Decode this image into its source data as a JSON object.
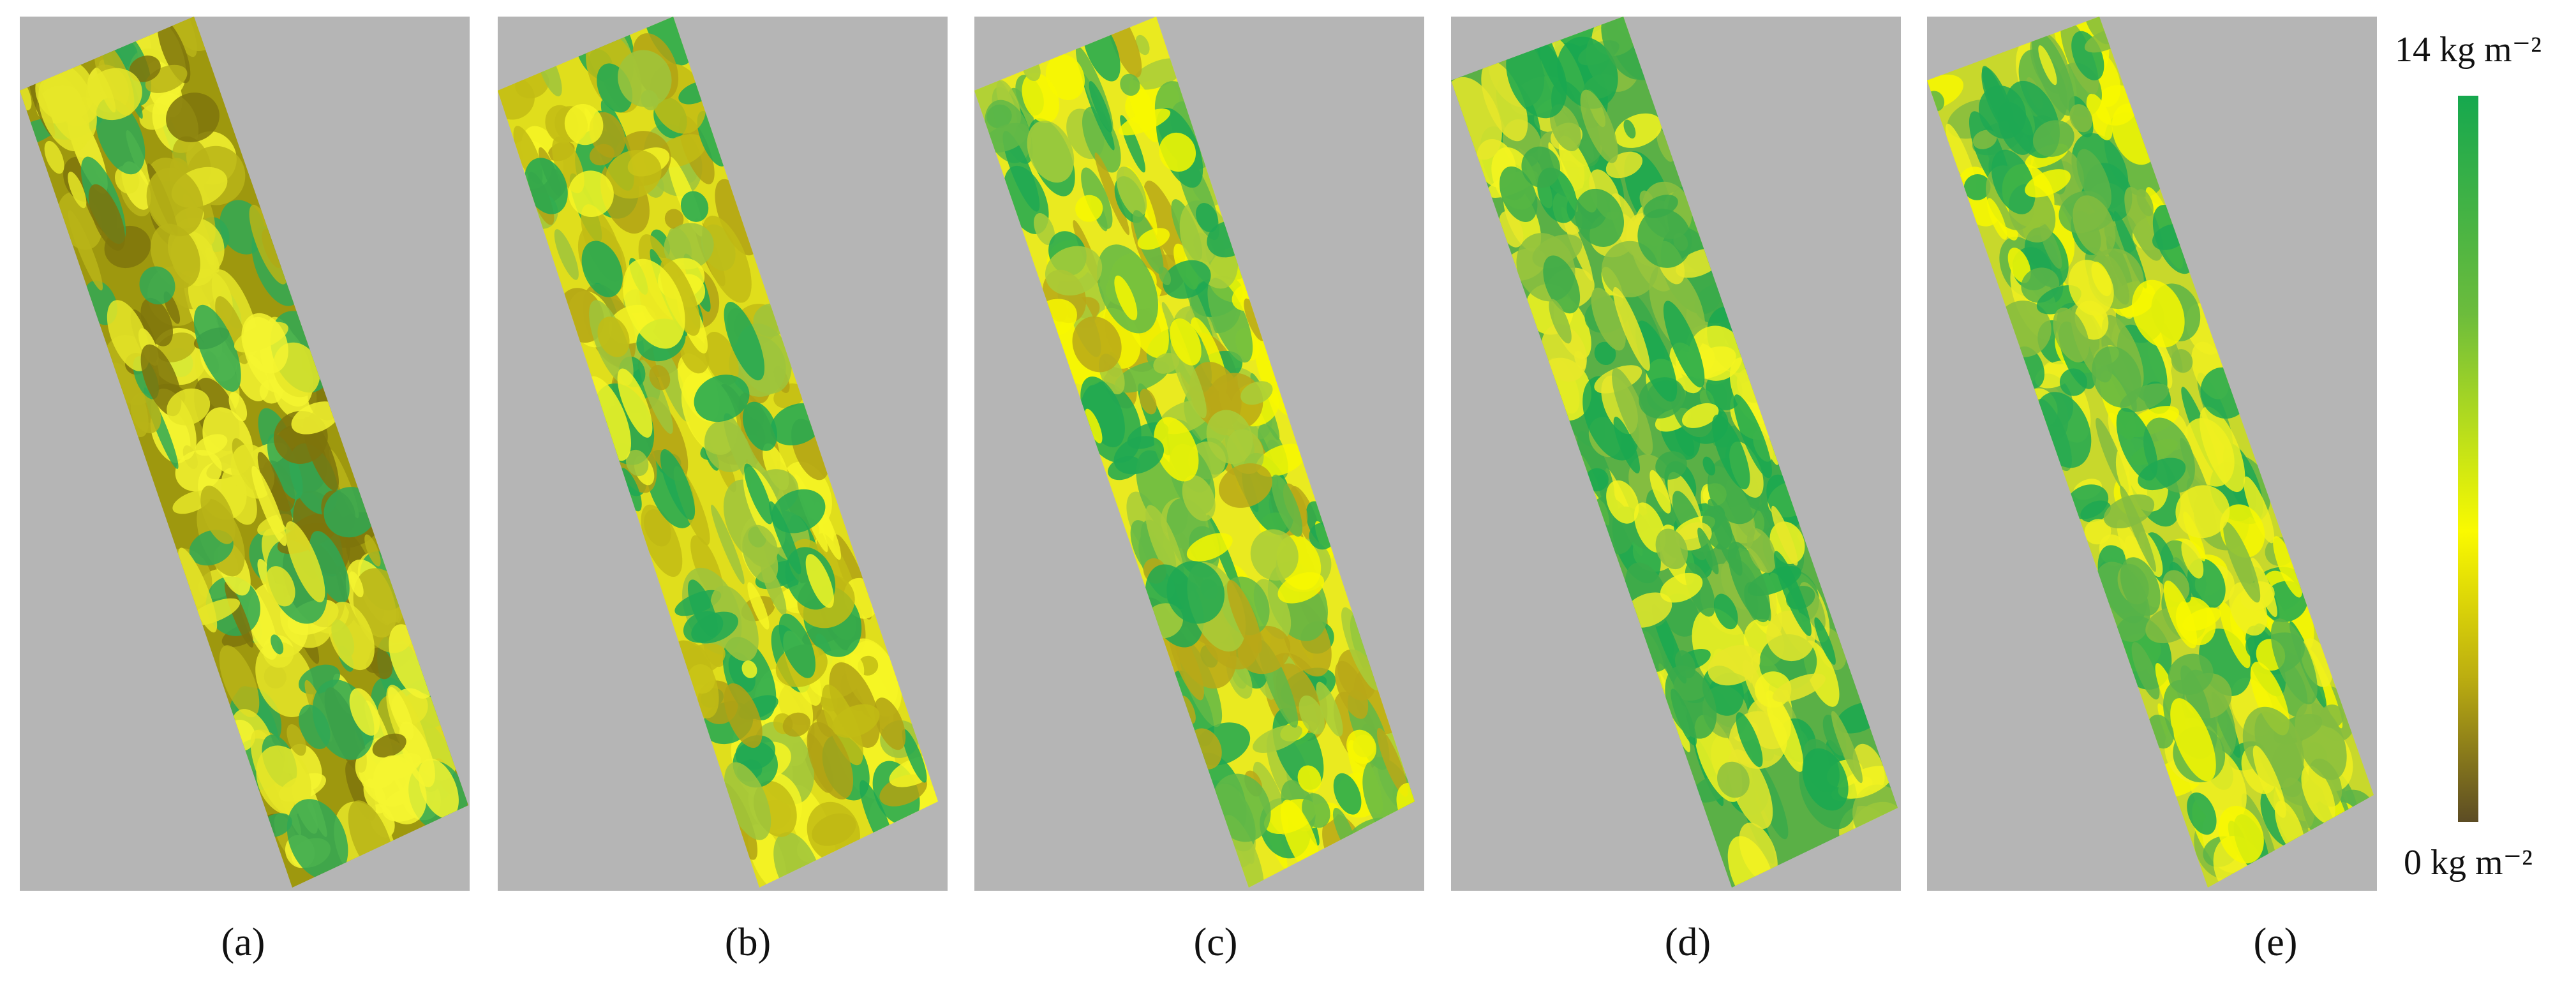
{
  "panels": [
    {
      "label": "(a)"
    },
    {
      "label": "(b)"
    },
    {
      "label": "(c)"
    },
    {
      "label": "(d)"
    },
    {
      "label": "(e)"
    }
  ],
  "colorbar": {
    "max_label": "14 kg m⁻²",
    "min_label": "0 kg m⁻²"
  }
}
